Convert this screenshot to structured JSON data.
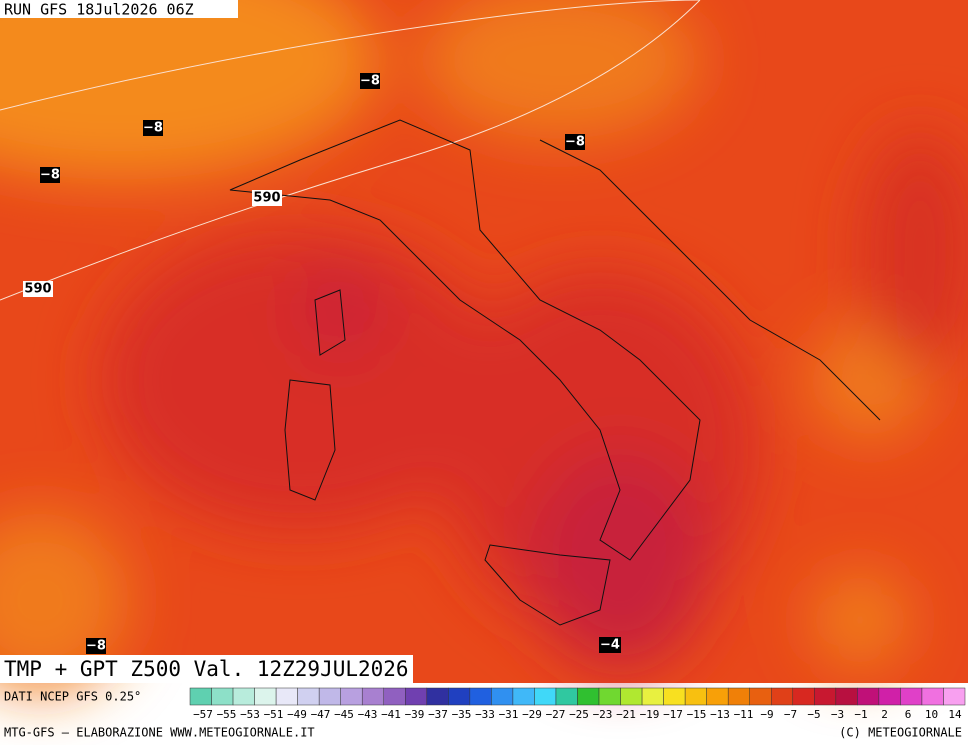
{
  "header": {
    "run": "RUN GFS 18Jul2026 06Z"
  },
  "map": {
    "contour_labels": [
      "−8",
      "−8",
      "−8",
      "−8",
      "−8",
      "−4",
      "590",
      "590"
    ]
  },
  "title": "TMP + GPT Z500 Val. 12Z29JUL2026",
  "source": "DATI NCEP GFS 0.25°",
  "colorbar": {
    "labels": [
      "−57",
      "−55",
      "−53",
      "−51",
      "−49",
      "−47",
      "−45",
      "−43",
      "−41",
      "−39",
      "−37",
      "−35",
      "−33",
      "−31",
      "−29",
      "−27",
      "−25",
      "−23",
      "−21",
      "−19",
      "−17",
      "−15",
      "−13",
      "−11",
      "−9",
      "−7",
      "−5",
      "−3",
      "−1",
      "2",
      "6",
      "10",
      "14"
    ],
    "colors": [
      "#5fd0b0",
      "#8de0c8",
      "#b8ecdc",
      "#dcf4ec",
      "#e8e8f8",
      "#d0d0f0",
      "#c0b8e8",
      "#b8a0e0",
      "#a880d0",
      "#9060c0",
      "#7040b0",
      "#3030a0",
      "#2040c0",
      "#2060e0",
      "#3090f0",
      "#40b8f8",
      "#40d8f8",
      "#30c8a0",
      "#30c030",
      "#70d830",
      "#b0e830",
      "#e8f040",
      "#f8e020",
      "#f8c010",
      "#f8a008",
      "#f08008",
      "#e86010",
      "#e04018",
      "#d82820",
      "#c81830",
      "#b81040",
      "#c01078",
      "#d020a8",
      "#e040c8",
      "#f070e0",
      "#f8a0f0"
    ]
  },
  "footer": {
    "left": "MTG-GFS — ELABORAZIONE WWW.METEOGIORNALE.IT",
    "right": "(C) METEOGIORNALE"
  }
}
